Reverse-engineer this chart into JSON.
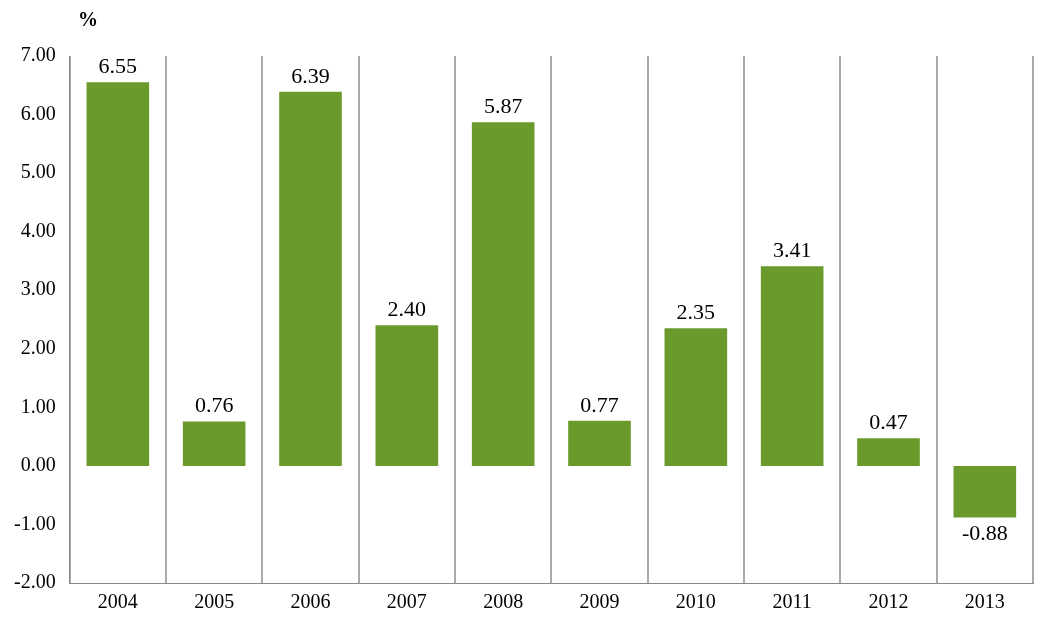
{
  "chart_data": {
    "type": "bar",
    "ylabel": "%",
    "categories": [
      "2004",
      "2005",
      "2006",
      "2007",
      "2008",
      "2009",
      "2010",
      "2011",
      "2012",
      "2013"
    ],
    "values": [
      6.55,
      0.76,
      6.39,
      2.4,
      5.87,
      0.77,
      2.35,
      3.41,
      0.47,
      -0.88
    ],
    "value_labels": [
      "6.55",
      "0.76",
      "6.39",
      "2.40",
      "5.87",
      "0.77",
      "2.35",
      "3.41",
      "0.47",
      "-0.88"
    ],
    "color": "#6b9a2c",
    "ylim": [
      -2,
      7
    ],
    "yticks": [
      {
        "value": -2,
        "label": "-2.00"
      },
      {
        "value": -1,
        "label": "-1.00"
      },
      {
        "value": 0,
        "label": "0.00"
      },
      {
        "value": 1,
        "label": "1.00"
      },
      {
        "value": 2,
        "label": "2.00"
      },
      {
        "value": 3,
        "label": "3.00"
      },
      {
        "value": 4,
        "label": "4.00"
      },
      {
        "value": 5,
        "label": "5.00"
      },
      {
        "value": 6,
        "label": "6.00"
      },
      {
        "value": 7,
        "label": "7.00"
      }
    ],
    "grid": "x",
    "legend": false
  }
}
